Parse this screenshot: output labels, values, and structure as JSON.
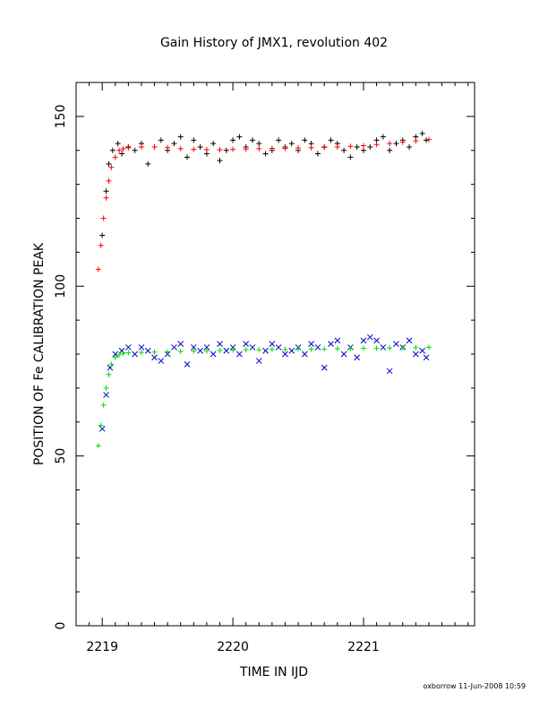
{
  "chart_data": {
    "type": "scatter",
    "title": "Gain History of JMX1, revolution 402",
    "xlabel": "TIME IN IJD",
    "ylabel": "POSITION OF Fe CALIBRATION PEAK",
    "xlim": [
      2218.8,
      2221.85
    ],
    "ylim": [
      0,
      160
    ],
    "x_ticks": [
      2219,
      2220,
      2221
    ],
    "x_tick_labels": [
      "2219",
      "2220",
      "2221"
    ],
    "y_ticks": [
      0,
      50,
      100,
      150
    ],
    "y_tick_labels": [
      "0",
      "50",
      "100",
      "150"
    ],
    "grid": false,
    "legend": "none",
    "footer": "oxborrow 11-Jun-2008 10:59",
    "series": [
      {
        "marker": "plus",
        "color": "#000000",
        "x": [
          2219.0,
          2219.03,
          2219.05,
          2219.08,
          2219.12,
          2219.15,
          2219.2,
          2219.25,
          2219.3,
          2219.35,
          2219.4,
          2219.45,
          2219.5,
          2219.55,
          2219.6,
          2219.65,
          2219.7,
          2219.75,
          2219.8,
          2219.85,
          2219.9,
          2219.95,
          2220.0,
          2220.05,
          2220.1,
          2220.15,
          2220.2,
          2220.25,
          2220.3,
          2220.35,
          2220.4,
          2220.45,
          2220.5,
          2220.55,
          2220.6,
          2220.65,
          2220.7,
          2220.75,
          2220.8,
          2220.85,
          2220.9,
          2220.95,
          2221.0,
          2221.05,
          2221.1,
          2221.15,
          2221.2,
          2221.25,
          2221.3,
          2221.35,
          2221.4,
          2221.45,
          2221.48
        ],
        "y": [
          115,
          128,
          136,
          140,
          142,
          139,
          141,
          140,
          142,
          136,
          141,
          143,
          140,
          142,
          144,
          138,
          143,
          141,
          139,
          142,
          137,
          140,
          143,
          144,
          141,
          143,
          142,
          139,
          140,
          143,
          141,
          142,
          140,
          143,
          142,
          139,
          141,
          143,
          142,
          140,
          138,
          141,
          140,
          141,
          143,
          144,
          140,
          142,
          143,
          141,
          144,
          145,
          143
        ]
      },
      {
        "marker": "cross",
        "color": "#0000cc",
        "x": [
          2219.0,
          2219.03,
          2219.06,
          2219.1,
          2219.15,
          2219.2,
          2219.25,
          2219.3,
          2219.35,
          2219.4,
          2219.45,
          2219.5,
          2219.55,
          2219.6,
          2219.65,
          2219.7,
          2219.75,
          2219.8,
          2219.85,
          2219.9,
          2219.95,
          2220.0,
          2220.05,
          2220.1,
          2220.15,
          2220.2,
          2220.25,
          2220.3,
          2220.35,
          2220.4,
          2220.45,
          2220.5,
          2220.55,
          2220.6,
          2220.65,
          2220.7,
          2220.75,
          2220.8,
          2220.85,
          2220.9,
          2220.95,
          2221.0,
          2221.05,
          2221.1,
          2221.15,
          2221.2,
          2221.25,
          2221.3,
          2221.35,
          2221.4,
          2221.45,
          2221.48
        ],
        "y": [
          58,
          68,
          76,
          80,
          81,
          82,
          80,
          82,
          81,
          79,
          78,
          80,
          82,
          83,
          77,
          82,
          81,
          82,
          80,
          83,
          81,
          82,
          80,
          83,
          82,
          78,
          81,
          83,
          82,
          80,
          81,
          82,
          80,
          83,
          82,
          76,
          83,
          84,
          80,
          82,
          79,
          84,
          85,
          84,
          82,
          75,
          83,
          82,
          84,
          80,
          81,
          79
        ]
      },
      {
        "marker": "plus",
        "color": "#ff0000",
        "x": [
          2218.97,
          2218.99,
          2219.01,
          2219.03,
          2219.05,
          2219.07,
          2219.1,
          2219.13,
          2219.16,
          2219.2,
          2219.3,
          2219.4,
          2219.5,
          2219.6,
          2219.7,
          2219.8,
          2219.9,
          2220.0,
          2220.1,
          2220.2,
          2220.3,
          2220.4,
          2220.5,
          2220.6,
          2220.7,
          2220.8,
          2220.9,
          2221.0,
          2221.1,
          2221.2,
          2221.3,
          2221.4,
          2221.5
        ],
        "y": [
          105,
          112,
          120,
          126,
          131,
          135,
          138,
          140,
          140.5,
          140.8,
          141,
          141,
          140.8,
          140.5,
          140.3,
          140.2,
          140.2,
          140.3,
          140.4,
          140.5,
          140.6,
          140.6,
          140.7,
          140.8,
          140.9,
          141,
          141.2,
          141.4,
          141.7,
          142,
          142.4,
          142.8,
          143.2
        ]
      },
      {
        "marker": "plus",
        "color": "#00dd00",
        "x": [
          2218.97,
          2218.99,
          2219.01,
          2219.03,
          2219.05,
          2219.07,
          2219.1,
          2219.13,
          2219.16,
          2219.2,
          2219.3,
          2219.4,
          2219.5,
          2219.6,
          2219.7,
          2219.8,
          2219.9,
          2220.0,
          2220.1,
          2220.2,
          2220.3,
          2220.4,
          2220.5,
          2220.6,
          2220.7,
          2220.8,
          2220.9,
          2221.0,
          2221.1,
          2221.2,
          2221.3,
          2221.4,
          2221.5
        ],
        "y": [
          53,
          59,
          65,
          70,
          74,
          77,
          79,
          79.8,
          80.2,
          80.4,
          80.5,
          80.6,
          80.7,
          80.8,
          80.9,
          81,
          81.1,
          81.2,
          81.3,
          81.3,
          81.4,
          81.4,
          81.5,
          81.5,
          81.5,
          81.6,
          81.6,
          81.7,
          81.7,
          81.8,
          81.8,
          81.9,
          82
        ]
      }
    ]
  }
}
